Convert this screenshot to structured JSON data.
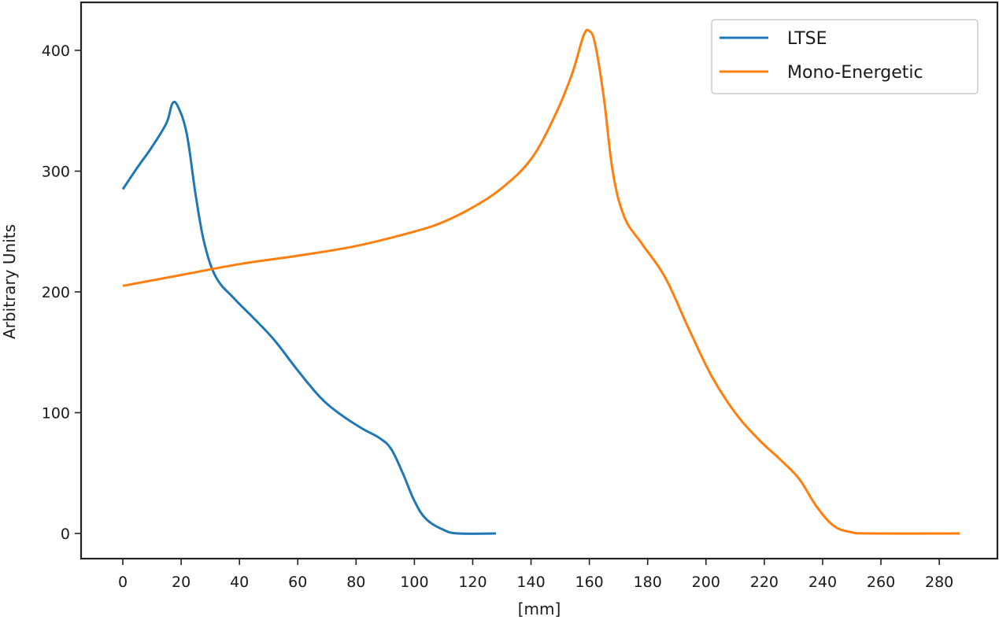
{
  "chart_data": {
    "type": "line",
    "title": "",
    "xlabel": "[mm]",
    "ylabel": "Arbitrary Units",
    "xlim": [
      -13,
      301
    ],
    "ylim": [
      -21,
      440
    ],
    "xticks": [
      0,
      20,
      40,
      60,
      80,
      100,
      120,
      140,
      160,
      180,
      200,
      220,
      240,
      260,
      280
    ],
    "yticks": [
      0,
      100,
      200,
      300,
      400
    ],
    "grid": false,
    "legend_position": "upper right",
    "series": [
      {
        "name": "LTSE",
        "color": "#1f77b4",
        "x": [
          0,
          5,
          10,
          15,
          17,
          19,
          22,
          25,
          28,
          32,
          38,
          45,
          52,
          60,
          68,
          75,
          82,
          88,
          92,
          96,
          100,
          104,
          110,
          115,
          128
        ],
        "y": [
          285,
          303,
          320,
          340,
          356,
          353,
          330,
          280,
          240,
          212,
          195,
          178,
          160,
          135,
          112,
          98,
          87,
          79,
          70,
          50,
          27,
          12,
          3,
          0,
          0
        ]
      },
      {
        "name": "Mono-Energetic",
        "color": "#ff7f0e",
        "x": [
          0,
          20,
          40,
          60,
          80,
          100,
          110,
          120,
          130,
          140,
          148,
          154,
          158,
          160,
          162,
          165,
          168,
          172,
          178,
          186,
          194,
          202,
          210,
          218,
          226,
          232,
          238,
          244,
          250,
          256,
          287
        ],
        "y": [
          205,
          214,
          223,
          230,
          238,
          250,
          258,
          270,
          286,
          310,
          345,
          380,
          412,
          416,
          405,
          360,
          300,
          262,
          240,
          212,
          170,
          130,
          100,
          78,
          60,
          45,
          22,
          6,
          1,
          0,
          0
        ]
      }
    ]
  },
  "legend": {
    "items": [
      {
        "label": "LTSE",
        "color": "#1f77b4"
      },
      {
        "label": "Mono-Energetic",
        "color": "#ff7f0e"
      }
    ]
  },
  "axes": {
    "xlabel": "[mm]",
    "ylabel": "Arbitrary Units"
  }
}
